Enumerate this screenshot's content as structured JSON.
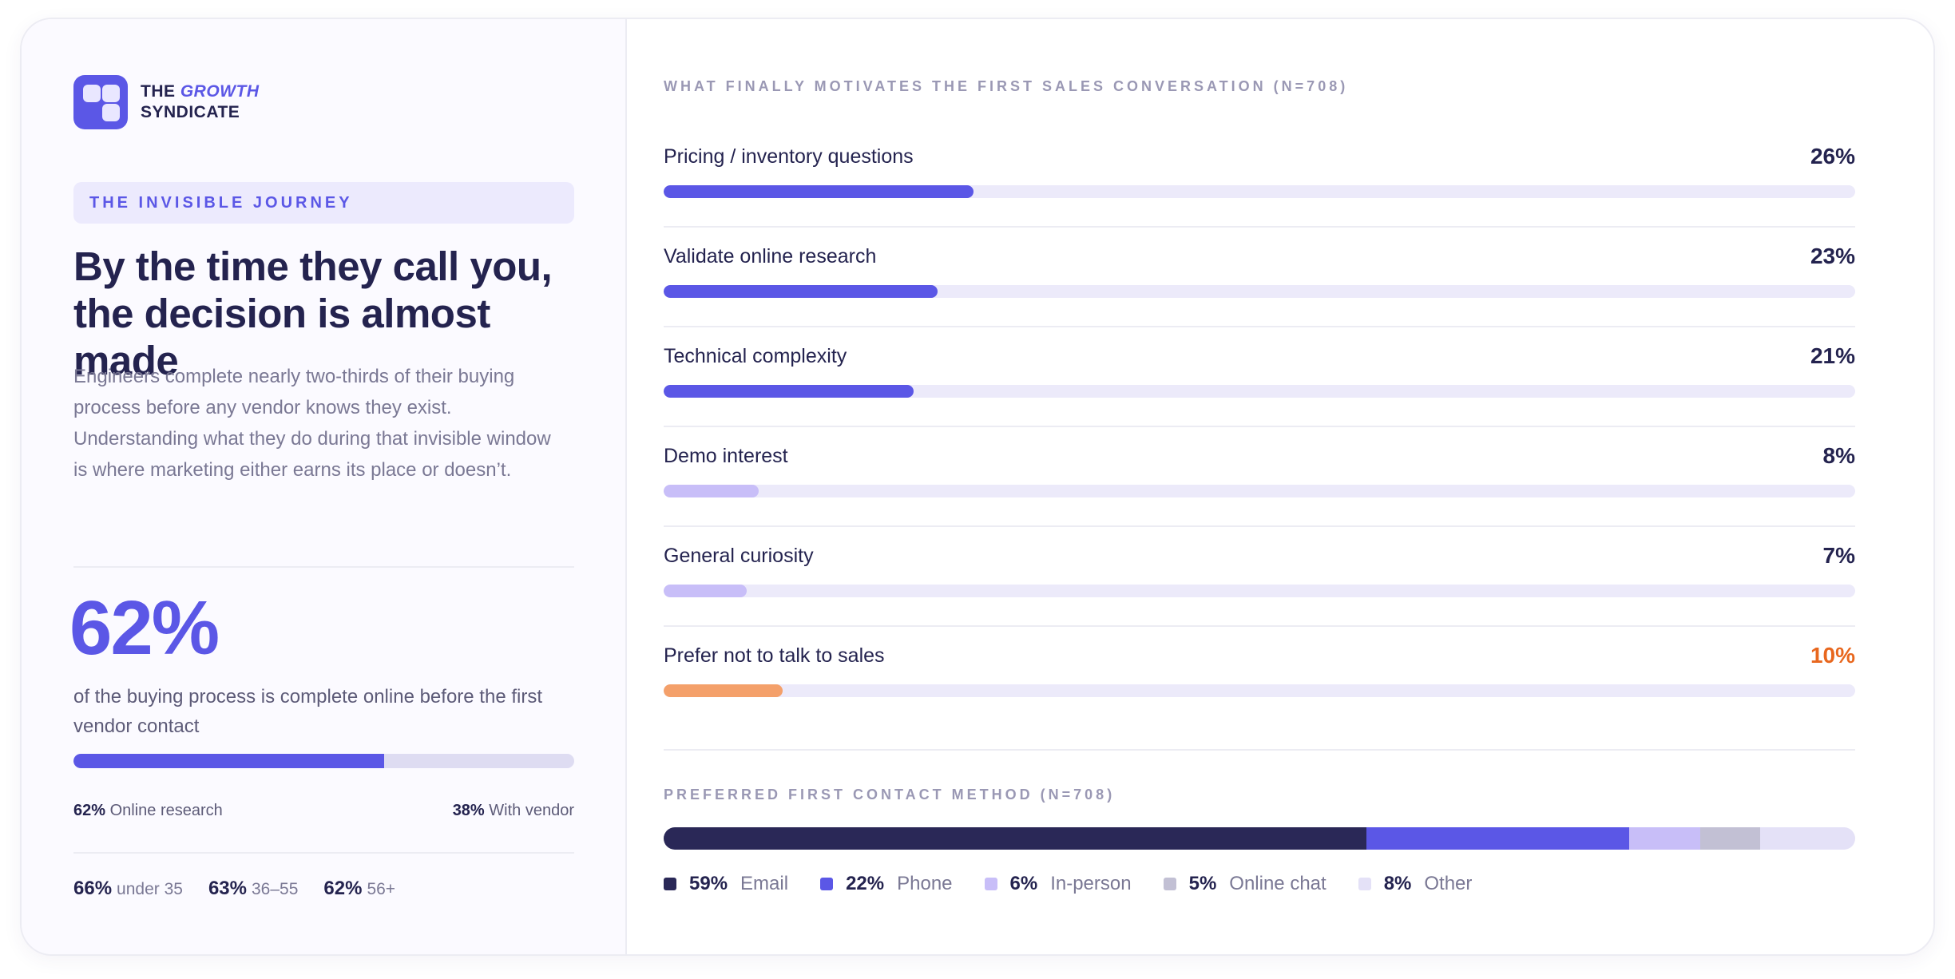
{
  "brand": {
    "line1_a": "THE ",
    "line1_b": "GROWTH",
    "line2": "SYNDICATE"
  },
  "tag": "THE INVISIBLE JOURNEY",
  "headline_1": "By the time they call you,",
  "headline_2": "the decision is almost made",
  "description": "Engineers complete nearly two-thirds of their buying process before any vendor knows they exist. Understanding what they do during that invisible window is where marketing either earns its place or doesn’t.",
  "big_stat": {
    "value": "62%",
    "caption": "of the buying process is complete online before the first vendor contact",
    "online_fraction": 0.62,
    "online_pct": "62%",
    "online_label": "Online research",
    "vendor_pct": "38%",
    "vendor_label": "With vendor"
  },
  "ages": [
    {
      "pct": "66%",
      "label": "under 35"
    },
    {
      "pct": "63%",
      "label": "36–55"
    },
    {
      "pct": "62%",
      "label": "56+"
    }
  ],
  "colors": {
    "primary": "#5b57e6",
    "light": "#c8bef8",
    "orange": "#f4a06a",
    "orange_text": "#e8671e",
    "navy": "#2a2857",
    "gray": "#c2c0d4",
    "pale": "#e4e1f7"
  },
  "chart_data": [
    {
      "type": "bar",
      "title": "WHAT FINALLY MOTIVATES THE FIRST SALES CONVERSATION (N=708)",
      "categories": [
        "Pricing / inventory questions",
        "Validate online research",
        "Technical complexity",
        "Demo interest",
        "General curiosity",
        "Prefer not to talk to sales"
      ],
      "values": [
        26,
        23,
        21,
        8,
        7,
        10
      ],
      "labels": [
        "26%",
        "23%",
        "21%",
        "8%",
        "7%",
        "10%"
      ],
      "bar_colors": [
        "#5b57e6",
        "#5b57e6",
        "#5b57e6",
        "#c8bef8",
        "#c8bef8",
        "#f4a06a"
      ],
      "label_colors": [
        "#24234f",
        "#24234f",
        "#24234f",
        "#24234f",
        "#24234f",
        "#e8671e"
      ],
      "xlim": [
        0,
        100
      ]
    },
    {
      "type": "bar",
      "stacked": true,
      "title": "PREFERRED FIRST CONTACT METHOD (N=708)",
      "categories": [
        "Email",
        "Phone",
        "In-person",
        "Online chat",
        "Other"
      ],
      "values": [
        59,
        22,
        6,
        5,
        8
      ],
      "labels": [
        "59%",
        "22%",
        "6%",
        "5%",
        "8%"
      ],
      "segment_colors": [
        "#2a2857",
        "#5b57e6",
        "#c8bef8",
        "#c2c0d4",
        "#e4e1f7"
      ]
    }
  ]
}
